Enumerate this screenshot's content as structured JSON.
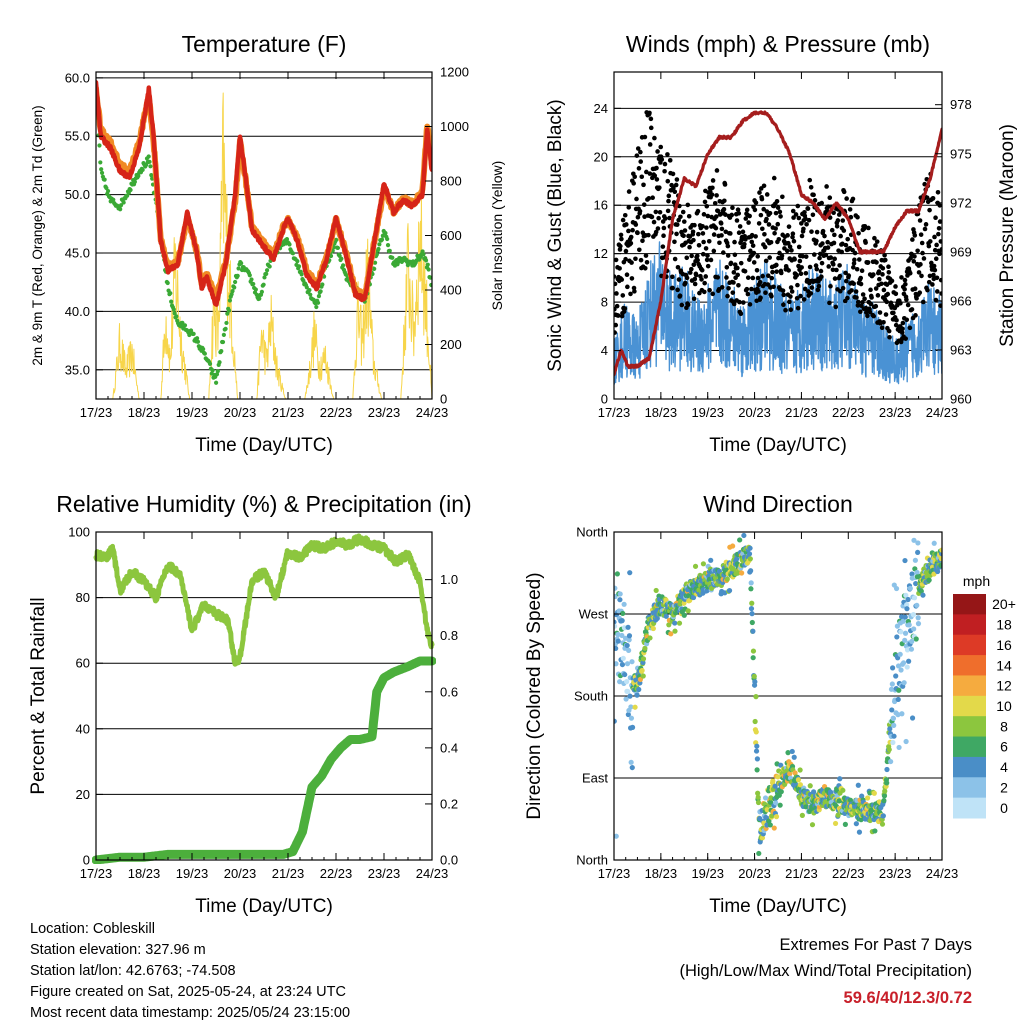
{
  "x_ticks": [
    "17/23",
    "18/23",
    "19/23",
    "20/23",
    "21/23",
    "22/23",
    "23/23",
    "24/23"
  ],
  "x_label": "Time (Day/UTC)",
  "colors": {
    "temp_2m": "#d62418",
    "temp_9m": "#f08a24",
    "dewpoint": "#3aa935",
    "solar": "#f7d54a",
    "gust": "#000000",
    "wind": "#4a92d4",
    "pressure": "#a51d1d",
    "rh": "#8cc63e",
    "rain": "#4caf3c"
  },
  "chart_data": [
    {
      "type": "line",
      "title": "Temperature (F)",
      "xlabel": "Time (Day/UTC)",
      "ylabel": "2m & 9m T (Red, Orange) & 2m Td (Green)",
      "y2label": "Solar Insolation (Yellow)",
      "xlim": [
        0,
        7
      ],
      "ylim": [
        32.5,
        60.5
      ],
      "y2lim": [
        0,
        1200
      ],
      "y_ticks": [
        "35.0",
        "40.0",
        "45.0",
        "50.0",
        "55.0",
        "60.0"
      ],
      "y2_ticks": [
        "0",
        "200",
        "400",
        "600",
        "800",
        "1000",
        "1200"
      ],
      "series": [
        {
          "name": "2m T",
          "x": [
            0,
            0.1,
            0.3,
            0.5,
            0.7,
            0.9,
            1.1,
            1.2,
            1.35,
            1.5,
            1.7,
            1.9,
            2.1,
            2.2,
            2.3,
            2.5,
            2.7,
            2.9,
            3.0,
            3.1,
            3.25,
            3.5,
            3.7,
            3.9,
            4.0,
            4.2,
            4.4,
            4.6,
            4.8,
            5.0,
            5.2,
            5.4,
            5.6,
            5.8,
            6.0,
            6.2,
            6.4,
            6.6,
            6.8,
            6.9,
            7.0
          ],
          "y": [
            59.5,
            55.0,
            54.0,
            52.0,
            51.5,
            54.0,
            59.0,
            55.0,
            46.0,
            43.5,
            44.0,
            48.5,
            45.0,
            42.0,
            43.0,
            40.5,
            44.0,
            50.0,
            55.0,
            52.0,
            47.0,
            45.5,
            44.5,
            47.0,
            48.0,
            46.0,
            43.0,
            42.0,
            44.5,
            48.0,
            45.0,
            41.5,
            41.0,
            46.0,
            51.0,
            48.5,
            49.5,
            49.0,
            50.0,
            55.5,
            52.0
          ]
        },
        {
          "name": "9m T",
          "x": [
            0,
            0.1,
            0.3,
            0.5,
            0.7,
            0.9,
            1.1,
            1.2,
            1.35,
            1.5,
            1.7,
            1.9,
            2.1,
            2.2,
            2.3,
            2.5,
            2.7,
            2.9,
            3.0,
            3.1,
            3.25,
            3.5,
            3.7,
            3.9,
            4.0,
            4.2,
            4.4,
            4.6,
            4.8,
            5.0,
            5.2,
            5.4,
            5.6,
            5.8,
            6.0,
            6.2,
            6.4,
            6.6,
            6.8,
            6.9,
            7.0
          ],
          "y": [
            59.0,
            55.5,
            54.5,
            52.5,
            52.0,
            54.5,
            58.5,
            54.5,
            46.2,
            43.8,
            44.2,
            48.0,
            45.2,
            42.4,
            43.2,
            41.0,
            44.2,
            49.5,
            54.5,
            51.8,
            47.2,
            45.8,
            44.8,
            47.2,
            47.8,
            46.2,
            43.4,
            42.3,
            44.6,
            47.8,
            45.2,
            41.8,
            41.3,
            46.0,
            50.5,
            48.6,
            49.6,
            49.2,
            50.2,
            56.0,
            52.5
          ]
        },
        {
          "name": "2m Td",
          "x": [
            0,
            0.1,
            0.3,
            0.5,
            0.7,
            0.9,
            1.1,
            1.3,
            1.5,
            1.7,
            1.9,
            2.1,
            2.3,
            2.5,
            2.6,
            2.8,
            3.0,
            3.2,
            3.4,
            3.6,
            3.8,
            4.0,
            4.2,
            4.4,
            4.6,
            4.8,
            5.0,
            5.2,
            5.4,
            5.6,
            5.8,
            6.0,
            6.2,
            6.4,
            6.6,
            6.8,
            6.9,
            7.0
          ],
          "y": [
            59.0,
            52.0,
            49.5,
            49.0,
            50.5,
            52.0,
            53.0,
            48.0,
            42.0,
            39.0,
            38.5,
            37.5,
            36.0,
            34.0,
            36.5,
            41.0,
            44.0,
            43.0,
            41.0,
            44.0,
            45.5,
            46.0,
            44.0,
            42.0,
            40.5,
            44.0,
            46.0,
            43.0,
            42.0,
            41.0,
            44.0,
            47.0,
            44.0,
            44.5,
            44.0,
            45.0,
            44.0,
            42.0
          ]
        },
        {
          "name": "Solar Insolation",
          "axis": "right",
          "x": [
            0,
            0.35,
            0.5,
            0.62,
            0.75,
            0.9,
            1.35,
            1.45,
            1.55,
            1.65,
            1.78,
            1.95,
            2.35,
            2.45,
            2.55,
            2.65,
            2.78,
            2.95,
            3.35,
            3.45,
            3.55,
            3.65,
            3.78,
            3.95,
            4.35,
            4.45,
            4.55,
            4.65,
            4.78,
            4.95,
            5.35,
            5.45,
            5.55,
            5.65,
            5.78,
            5.95,
            6.35,
            6.5,
            6.62,
            6.75,
            6.88,
            7.0
          ],
          "y": [
            0,
            0,
            300,
            150,
            250,
            0,
            0,
            450,
            200,
            700,
            300,
            0,
            0,
            500,
            350,
            1200,
            600,
            0,
            0,
            350,
            200,
            400,
            150,
            0,
            0,
            150,
            350,
            180,
            220,
            0,
            0,
            450,
            300,
            650,
            200,
            0,
            0,
            700,
            350,
            900,
            500,
            0
          ]
        }
      ]
    },
    {
      "type": "scatter",
      "title": "Winds (mph) & Pressure (mb)",
      "xlabel": "Time (Day/UTC)",
      "ylabel": "Sonic Wind & Gust (Blue, Black)",
      "y2label": "Station Pressure (Maroon)",
      "xlim": [
        0,
        7
      ],
      "ylim": [
        0,
        27
      ],
      "y2lim": [
        960,
        980
      ],
      "y_ticks": [
        "0",
        "4",
        "8",
        "12",
        "16",
        "20",
        "24"
      ],
      "y2_ticks": [
        "960",
        "963",
        "966",
        "969",
        "972",
        "975",
        "978"
      ],
      "series": [
        {
          "name": "Sonic Wind",
          "x": [
            0,
            0.25,
            0.5,
            0.75,
            1.0,
            1.25,
            1.5,
            1.75,
            2.0,
            2.25,
            2.5,
            2.75,
            3.0,
            3.25,
            3.5,
            3.75,
            4.0,
            4.25,
            4.5,
            4.75,
            5.0,
            5.25,
            5.5,
            5.75,
            6.0,
            6.25,
            6.5,
            6.75,
            7.0
          ],
          "y": [
            3,
            5,
            4,
            7,
            8,
            6,
            7,
            5,
            6,
            7,
            6,
            5,
            6,
            7,
            6,
            5,
            6,
            7,
            6,
            6,
            7,
            5,
            5,
            4,
            3,
            4,
            5,
            6,
            5
          ]
        },
        {
          "name": "Gust",
          "x": [
            0,
            0.25,
            0.5,
            0.75,
            1.0,
            1.25,
            1.5,
            1.75,
            2.0,
            2.25,
            2.5,
            2.75,
            3.0,
            3.25,
            3.5,
            3.75,
            4.0,
            4.25,
            4.5,
            4.75,
            5.0,
            5.25,
            5.5,
            5.75,
            6.0,
            6.25,
            6.5,
            6.75,
            7.0
          ],
          "y": [
            8,
            12,
            15,
            18,
            16,
            14,
            12,
            11,
            13,
            14,
            12,
            11,
            12,
            14,
            13,
            11,
            12,
            14,
            13,
            12,
            13,
            11,
            10,
            9,
            7,
            8,
            12,
            14,
            12
          ]
        },
        {
          "name": "Station Pressure",
          "axis": "right",
          "x": [
            0,
            0.15,
            0.3,
            0.5,
            0.75,
            1.0,
            1.25,
            1.5,
            1.75,
            2.0,
            2.25,
            2.5,
            2.75,
            3.0,
            3.25,
            3.5,
            3.75,
            4.0,
            4.25,
            4.5,
            4.75,
            5.0,
            5.25,
            5.5,
            5.75,
            6.0,
            6.25,
            6.5,
            6.75,
            7.0
          ],
          "y": [
            961.5,
            963,
            962,
            962,
            962.5,
            966,
            971,
            973.5,
            973,
            975,
            976,
            976,
            977,
            977.5,
            977.5,
            976.5,
            975,
            972.5,
            972,
            971,
            972,
            971,
            969,
            969,
            969,
            970.5,
            971.5,
            971.5,
            973.5,
            976.5
          ]
        }
      ]
    },
    {
      "type": "area",
      "title": "Relative Humidity (%) & Precipitation (in)",
      "xlabel": "Time (Day/UTC)",
      "ylabel": "Percent & Total Rainfall",
      "xlim": [
        0,
        7
      ],
      "ylim": [
        0,
        100
      ],
      "y2lim": [
        0,
        1.17
      ],
      "y_ticks": [
        "0",
        "20",
        "40",
        "60",
        "80",
        "100"
      ],
      "y2_ticks": [
        "0.0",
        "0.2",
        "0.4",
        "0.6",
        "0.8",
        "1.0"
      ],
      "series": [
        {
          "name": "Relative Humidity",
          "x": [
            0,
            0.2,
            0.35,
            0.5,
            0.75,
            1.0,
            1.25,
            1.5,
            1.75,
            2.0,
            2.25,
            2.5,
            2.75,
            2.9,
            3.0,
            3.25,
            3.5,
            3.75,
            4.0,
            4.25,
            4.5,
            4.75,
            5.0,
            5.25,
            5.5,
            5.75,
            6.0,
            6.25,
            6.5,
            6.75,
            6.9,
            7.0
          ],
          "y": [
            93,
            92,
            95,
            82,
            88,
            85,
            80,
            90,
            87,
            70,
            78,
            75,
            73,
            60,
            62,
            85,
            88,
            80,
            94,
            92,
            96,
            95,
            97,
            96,
            98,
            96,
            95,
            91,
            93,
            85,
            70,
            65
          ]
        },
        {
          "name": "Total Rainfall",
          "axis": "right",
          "x": [
            0,
            0.5,
            1.0,
            1.5,
            2.0,
            2.5,
            3.0,
            3.5,
            3.9,
            4.1,
            4.3,
            4.5,
            4.7,
            4.9,
            5.1,
            5.3,
            5.5,
            5.75,
            5.85,
            6.0,
            6.2,
            6.5,
            6.75,
            7.0
          ],
          "y": [
            0,
            0.01,
            0.01,
            0.02,
            0.02,
            0.02,
            0.02,
            0.02,
            0.02,
            0.03,
            0.1,
            0.26,
            0.3,
            0.36,
            0.4,
            0.43,
            0.43,
            0.44,
            0.6,
            0.65,
            0.67,
            0.69,
            0.71,
            0.71
          ]
        }
      ]
    },
    {
      "type": "scatter",
      "title": "Wind Direction",
      "xlabel": "Time (Day/UTC)",
      "ylabel": "Direction (Colored By Speed)",
      "xlim": [
        0,
        7
      ],
      "ylim": [
        0,
        360
      ],
      "y_ticks": [
        "North",
        "East",
        "South",
        "West",
        "North"
      ],
      "colorbar": {
        "unit": "mph",
        "labels": [
          "0",
          "2",
          "4",
          "6",
          "8",
          "10",
          "12",
          "14",
          "16",
          "18",
          "20+"
        ],
        "colors": [
          "#bfe3f7",
          "#8cc2e8",
          "#4a8ec7",
          "#3fa864",
          "#8cc63e",
          "#e3d94a",
          "#f5ab3f",
          "#ef6e2c",
          "#dd3a26",
          "#c01f22",
          "#951617"
        ]
      },
      "series": [
        {
          "name": "Direction",
          "x": [
            0,
            0.2,
            0.35,
            0.5,
            0.75,
            1.0,
            1.25,
            1.5,
            1.75,
            2.0,
            2.25,
            2.5,
            2.75,
            2.9,
            3.1,
            3.3,
            3.5,
            3.75,
            4.0,
            4.25,
            4.5,
            4.75,
            5.0,
            5.25,
            5.5,
            5.75,
            6.0,
            6.25,
            6.5,
            6.75,
            7.0
          ],
          "y": [
            280,
            230,
            200,
            190,
            260,
            280,
            270,
            290,
            300,
            305,
            310,
            320,
            330,
            340,
            30,
            60,
            80,
            100,
            70,
            60,
            70,
            65,
            60,
            55,
            50,
            55,
            200,
            250,
            300,
            320,
            330
          ]
        }
      ]
    }
  ],
  "meta": {
    "location": "Location: Cobleskill",
    "elevation": "Station elevation: 327.96 m",
    "latlon": "Station lat/lon: 42.6763; -74.508",
    "created": "Figure created on Sat, 2025-05-24, at 23:24 UTC",
    "recent": "Most recent data timestamp: 2025/05/24 23:15:00"
  },
  "extremes": {
    "title": "Extremes For Past 7 Days",
    "subtitle": "(High/Low/Max Wind/Total Precipitation)",
    "values": "59.6/40/12.3/0.72"
  }
}
